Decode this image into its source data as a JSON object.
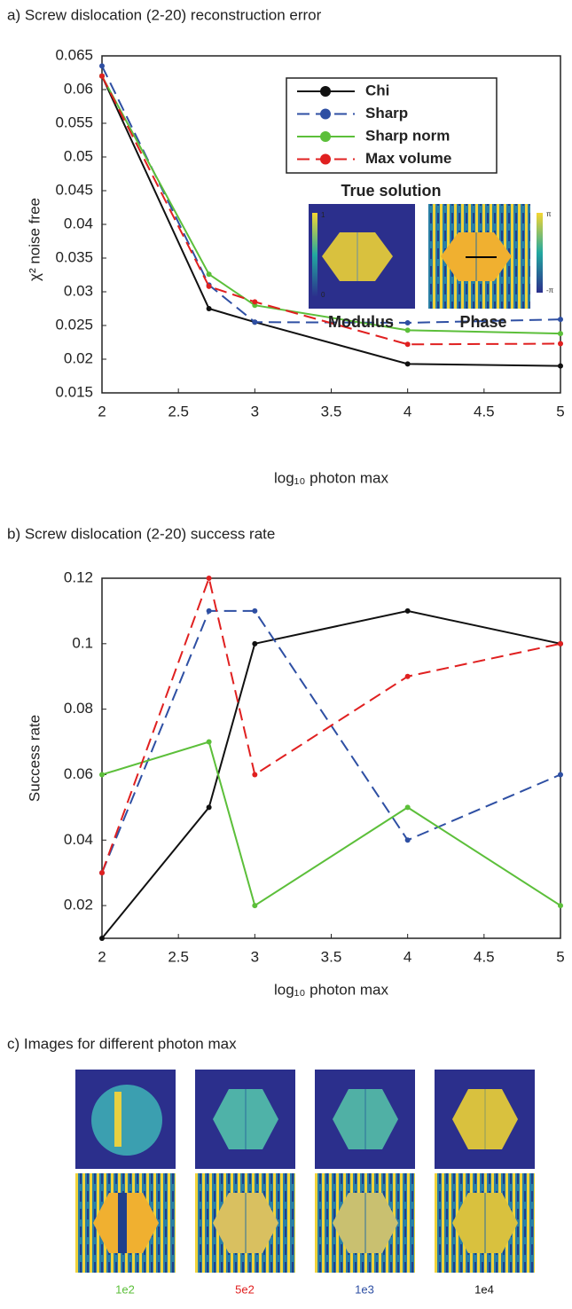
{
  "chart_data": [
    {
      "type": "line",
      "title": "a) Screw dislocation (2-20) reconstruction error",
      "xlabel": "log₁₀ photon max",
      "ylabel": "χ² noise free",
      "x": [
        2,
        2.7,
        3,
        4,
        5
      ],
      "series": [
        {
          "name": "Chi",
          "color": "#111111",
          "style": "solid",
          "values": [
            0.062,
            0.0275,
            0.0255,
            0.0193,
            0.019
          ]
        },
        {
          "name": "Sharp",
          "color": "#2e4fa3",
          "style": "dashed",
          "values": [
            0.0635,
            0.031,
            0.0255,
            0.0254,
            0.0259
          ]
        },
        {
          "name": "Sharp norm",
          "color": "#5cbf3a",
          "style": "solid",
          "values": [
            0.062,
            0.0326,
            0.028,
            0.0243,
            0.0238
          ]
        },
        {
          "name": "Max volume",
          "color": "#e02020",
          "style": "dashed",
          "values": [
            0.062,
            0.0308,
            0.0285,
            0.0222,
            0.0223
          ]
        }
      ],
      "xlim": [
        2,
        5
      ],
      "xticks": [
        2,
        2.5,
        3,
        3.5,
        4,
        4.5,
        5
      ],
      "ylim": [
        0.015,
        0.065
      ],
      "yticks": [
        0.015,
        0.02,
        0.025,
        0.03,
        0.035,
        0.04,
        0.045,
        0.05,
        0.055,
        0.06,
        0.065
      ],
      "legend": "upper right",
      "annotations": [
        "True solution",
        "Modulus",
        "Phase"
      ],
      "colorbar_labels": [
        "1",
        "0",
        "π",
        "-π"
      ]
    },
    {
      "type": "line",
      "title": "b) Screw dislocation (2-20) success rate",
      "xlabel": "log₁₀ photon max",
      "ylabel": "Success rate",
      "x": [
        2,
        2.7,
        3,
        4,
        5
      ],
      "series": [
        {
          "name": "Chi",
          "color": "#111111",
          "style": "solid",
          "values": [
            0.01,
            0.05,
            0.1,
            0.11,
            0.1
          ]
        },
        {
          "name": "Sharp",
          "color": "#2e4fa3",
          "style": "dashed",
          "values": [
            0.03,
            0.11,
            0.11,
            0.04,
            0.06
          ]
        },
        {
          "name": "Sharp norm",
          "color": "#5cbf3a",
          "style": "solid",
          "values": [
            0.06,
            0.07,
            0.02,
            0.05,
            0.02
          ]
        },
        {
          "name": "Max volume",
          "color": "#e02020",
          "style": "dashed",
          "values": [
            0.03,
            0.12,
            0.06,
            0.09,
            0.1
          ]
        }
      ],
      "xlim": [
        2,
        5
      ],
      "xticks": [
        2,
        2.5,
        3,
        3.5,
        4,
        4.5,
        5
      ],
      "ylim": [
        0.01,
        0.12
      ],
      "yticks": [
        0.02,
        0.04,
        0.06,
        0.08,
        0.1,
        0.12
      ]
    }
  ],
  "panel_c": {
    "title": "c) Images for different photon max",
    "labels": [
      {
        "text": "1e2",
        "color": "#5cbf3a"
      },
      {
        "text": "5e2",
        "color": "#e02020"
      },
      {
        "text": "1e3",
        "color": "#2e4fa3"
      },
      {
        "text": "1e4",
        "color": "#111111"
      }
    ]
  }
}
